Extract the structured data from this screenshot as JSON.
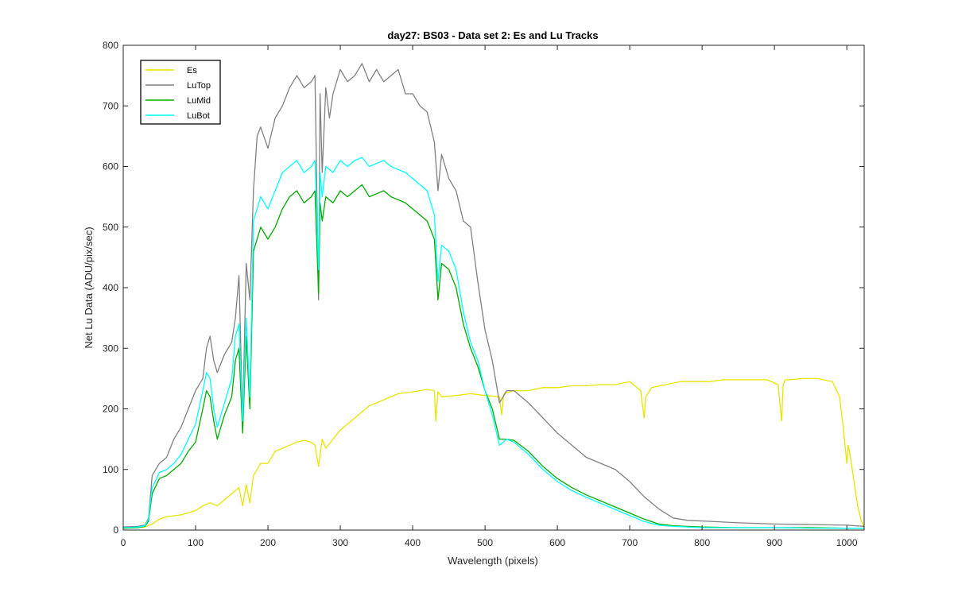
{
  "chart_data": {
    "type": "line",
    "title": "day27: BS03 - Data set 2: Es and Lu Tracks",
    "xlabel": "Wavelength (pixels)",
    "ylabel": "Net Lu Data (ADU/pix/sec)",
    "xlim": [
      0,
      1024
    ],
    "ylim": [
      0,
      800
    ],
    "xticks": [
      0,
      100,
      200,
      300,
      400,
      500,
      600,
      700,
      800,
      900,
      1000
    ],
    "yticks": [
      0,
      100,
      200,
      300,
      400,
      500,
      600,
      700,
      800
    ],
    "grid": false,
    "legend_position": "top-left",
    "series": [
      {
        "name": "Es",
        "color": "#e6e600",
        "x": [
          0,
          30,
          40,
          50,
          60,
          80,
          100,
          110,
          120,
          130,
          140,
          150,
          160,
          165,
          170,
          175,
          180,
          190,
          200,
          210,
          220,
          230,
          240,
          250,
          260,
          265,
          270,
          275,
          280,
          290,
          300,
          320,
          340,
          360,
          380,
          400,
          420,
          430,
          432,
          435,
          440,
          460,
          480,
          500,
          520,
          523,
          526,
          540,
          560,
          580,
          600,
          620,
          640,
          660,
          680,
          700,
          715,
          720,
          722,
          725,
          730,
          750,
          770,
          790,
          810,
          830,
          850,
          870,
          890,
          905,
          910,
          912,
          915,
          920,
          940,
          960,
          980,
          990,
          995,
          1000,
          1002,
          1005,
          1010,
          1015,
          1020,
          1024
        ],
        "y": [
          3,
          5,
          10,
          18,
          22,
          25,
          32,
          40,
          45,
          40,
          50,
          60,
          70,
          40,
          75,
          45,
          90,
          110,
          110,
          130,
          135,
          140,
          145,
          148,
          145,
          140,
          105,
          150,
          135,
          150,
          165,
          185,
          205,
          215,
          225,
          228,
          232,
          230,
          180,
          228,
          220,
          222,
          225,
          222,
          220,
          190,
          225,
          230,
          230,
          235,
          235,
          238,
          238,
          240,
          240,
          245,
          230,
          185,
          220,
          225,
          235,
          240,
          245,
          245,
          245,
          248,
          248,
          248,
          248,
          240,
          180,
          240,
          248,
          248,
          250,
          250,
          245,
          220,
          170,
          110,
          140,
          120,
          80,
          40,
          15,
          5
        ]
      },
      {
        "name": "LuTop",
        "color": "#808080",
        "x": [
          0,
          20,
          30,
          35,
          40,
          50,
          60,
          70,
          80,
          90,
          100,
          110,
          115,
          120,
          125,
          130,
          140,
          150,
          155,
          160,
          165,
          170,
          175,
          180,
          185,
          190,
          200,
          210,
          220,
          230,
          240,
          250,
          260,
          265,
          270,
          272,
          275,
          280,
          285,
          290,
          300,
          310,
          320,
          330,
          340,
          350,
          360,
          370,
          380,
          390,
          400,
          410,
          420,
          430,
          435,
          440,
          450,
          460,
          470,
          480,
          490,
          500,
          510,
          520,
          530,
          540,
          560,
          580,
          600,
          620,
          640,
          660,
          680,
          700,
          720,
          740,
          760,
          780,
          800,
          850,
          900,
          950,
          1000,
          1024
        ],
        "y": [
          5,
          6,
          8,
          20,
          90,
          110,
          120,
          150,
          170,
          200,
          230,
          250,
          300,
          320,
          280,
          260,
          290,
          310,
          350,
          420,
          180,
          440,
          380,
          560,
          650,
          665,
          630,
          680,
          700,
          730,
          750,
          730,
          740,
          750,
          380,
          720,
          590,
          730,
          680,
          720,
          760,
          740,
          750,
          770,
          740,
          760,
          740,
          750,
          760,
          720,
          720,
          700,
          690,
          640,
          560,
          620,
          580,
          560,
          510,
          500,
          410,
          330,
          280,
          210,
          230,
          230,
          210,
          185,
          160,
          140,
          120,
          110,
          100,
          80,
          55,
          35,
          20,
          16,
          15,
          12,
          10,
          9,
          8,
          6
        ]
      },
      {
        "name": "LuMid",
        "color": "#00aa00",
        "x": [
          0,
          20,
          30,
          35,
          40,
          50,
          60,
          70,
          80,
          90,
          100,
          110,
          115,
          120,
          125,
          130,
          140,
          150,
          155,
          160,
          165,
          170,
          175,
          180,
          190,
          200,
          210,
          220,
          230,
          240,
          250,
          260,
          265,
          270,
          272,
          275,
          280,
          290,
          300,
          310,
          320,
          330,
          340,
          350,
          360,
          370,
          380,
          390,
          400,
          410,
          420,
          430,
          435,
          440,
          450,
          460,
          470,
          480,
          490,
          500,
          510,
          520,
          530,
          540,
          560,
          580,
          600,
          620,
          640,
          660,
          680,
          700,
          720,
          740,
          760,
          780,
          800,
          850,
          900,
          950,
          1000,
          1024
        ],
        "y": [
          3,
          4,
          6,
          15,
          60,
          85,
          90,
          100,
          110,
          130,
          145,
          200,
          230,
          220,
          180,
          150,
          190,
          220,
          280,
          300,
          160,
          320,
          200,
          460,
          500,
          480,
          500,
          530,
          550,
          560,
          540,
          550,
          560,
          390,
          540,
          510,
          550,
          540,
          560,
          550,
          560,
          570,
          550,
          555,
          560,
          550,
          545,
          540,
          530,
          520,
          510,
          480,
          380,
          440,
          430,
          400,
          340,
          300,
          270,
          230,
          200,
          150,
          150,
          148,
          130,
          105,
          85,
          70,
          58,
          48,
          38,
          28,
          18,
          10,
          7,
          6,
          5,
          4,
          4,
          4,
          3,
          3
        ]
      },
      {
        "name": "LuBot",
        "color": "#00ffff",
        "x": [
          0,
          20,
          30,
          35,
          40,
          50,
          60,
          70,
          80,
          90,
          100,
          110,
          115,
          120,
          125,
          130,
          140,
          150,
          155,
          160,
          165,
          170,
          175,
          180,
          190,
          200,
          210,
          220,
          230,
          240,
          250,
          260,
          265,
          270,
          272,
          275,
          280,
          290,
          300,
          310,
          320,
          330,
          340,
          350,
          360,
          370,
          380,
          390,
          400,
          410,
          420,
          430,
          435,
          440,
          450,
          460,
          470,
          480,
          490,
          500,
          510,
          520,
          530,
          540,
          560,
          580,
          600,
          620,
          640,
          660,
          680,
          700,
          720,
          740,
          760,
          780,
          800,
          850,
          900,
          950,
          1000,
          1024
        ],
        "y": [
          4,
          5,
          7,
          18,
          70,
          95,
          100,
          110,
          125,
          150,
          175,
          230,
          260,
          250,
          200,
          170,
          210,
          250,
          320,
          340,
          180,
          350,
          220,
          510,
          550,
          530,
          560,
          590,
          600,
          610,
          590,
          600,
          610,
          430,
          590,
          550,
          600,
          590,
          610,
          600,
          610,
          615,
          600,
          605,
          610,
          600,
          595,
          590,
          580,
          570,
          560,
          520,
          410,
          470,
          460,
          430,
          360,
          310,
          280,
          230,
          190,
          140,
          150,
          145,
          125,
          100,
          80,
          65,
          54,
          44,
          34,
          24,
          14,
          8,
          6,
          5,
          4,
          4,
          4,
          3,
          3,
          3
        ]
      }
    ]
  }
}
